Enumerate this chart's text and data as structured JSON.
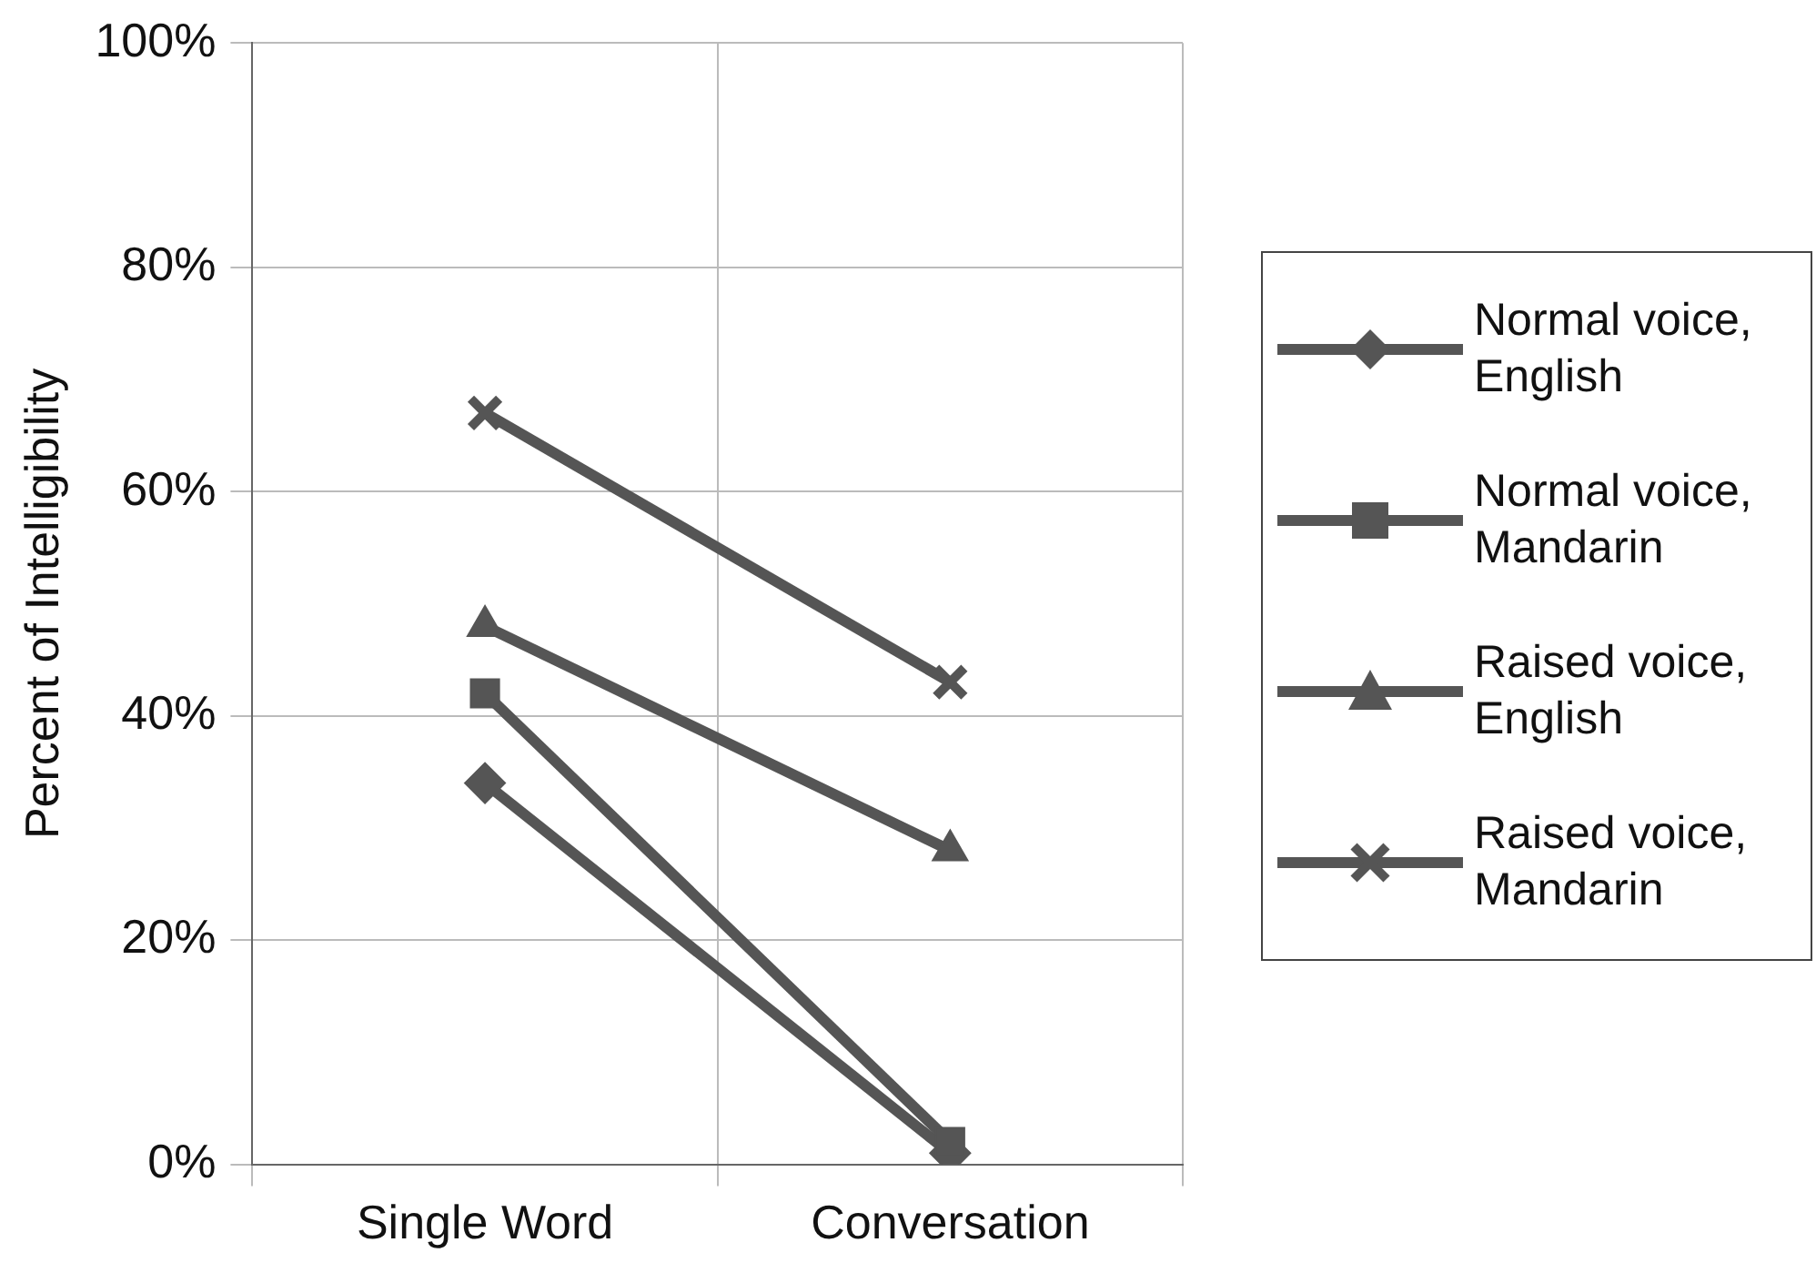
{
  "chart_data": {
    "type": "line",
    "ylabel": "Percent of Intelligibility",
    "categories": [
      "Single Word",
      "Conversation"
    ],
    "series": [
      {
        "name": "Normal voice, English",
        "color": "#555555",
        "marker": "diamond",
        "values": [
          34,
          1
        ]
      },
      {
        "name": "Normal voice, Mandarin",
        "color": "#555555",
        "marker": "square",
        "values": [
          42,
          2
        ]
      },
      {
        "name": "Raised voice, English",
        "color": "#555555",
        "marker": "triangle",
        "values": [
          48,
          28
        ]
      },
      {
        "name": "Raised voice, Mandarin",
        "color": "#555555",
        "marker": "cross",
        "values": [
          67,
          43
        ]
      }
    ],
    "ylim": [
      0,
      100
    ],
    "yticks": [
      {
        "value": 0,
        "label": "0%"
      },
      {
        "value": 20,
        "label": "20%"
      },
      {
        "value": 40,
        "label": "40%"
      },
      {
        "value": 60,
        "label": "60%"
      },
      {
        "value": 80,
        "label": "80%"
      },
      {
        "value": 100,
        "label": "100%"
      }
    ],
    "grid": true,
    "legend": "right",
    "line_style": "solid"
  }
}
